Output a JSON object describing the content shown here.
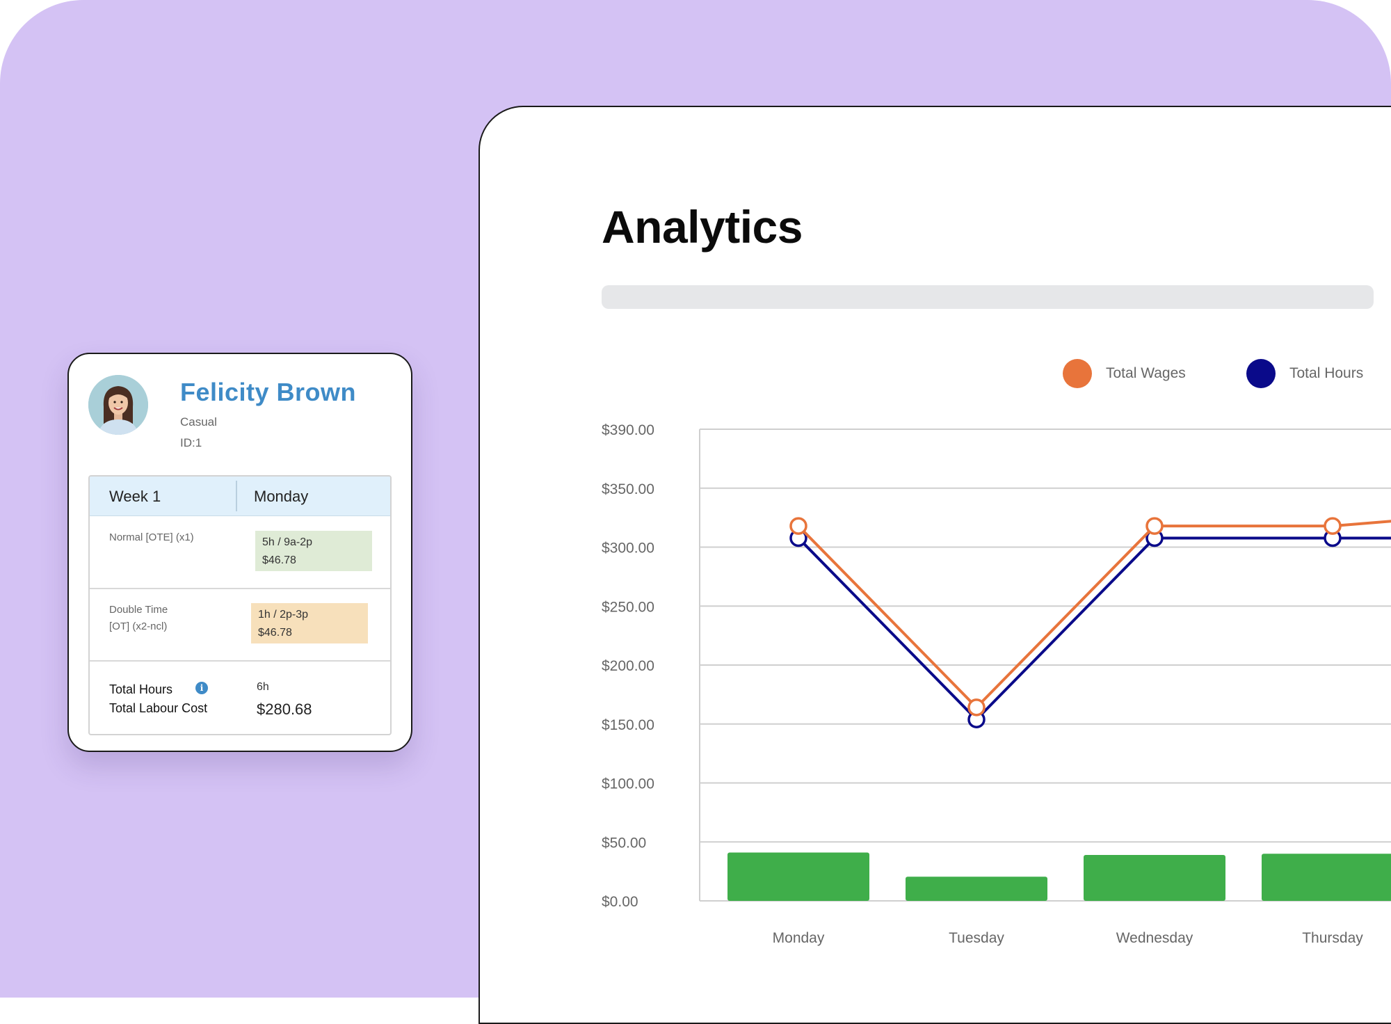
{
  "analytics": {
    "title": "Analytics",
    "legend": [
      {
        "label": "Total Wages",
        "color": "#e8743b"
      },
      {
        "label": "Total Hours",
        "color": "#0a0a8a"
      }
    ]
  },
  "chart_data": {
    "type": "line",
    "categories": [
      "Monday",
      "Tuesday",
      "Wednesday",
      "Thursday"
    ],
    "y_ticks": [
      "$390.00",
      "$350.00",
      "$300.00",
      "$250.00",
      "$200.00",
      "$150.00",
      "$100.00",
      "$50.00",
      "$0.00"
    ],
    "ylim": [
      0,
      390
    ],
    "series": [
      {
        "name": "Total Wages",
        "type": "line",
        "color": "#e8743b",
        "values": [
          310,
          160,
          310,
          310
        ],
        "continues_to": 322
      },
      {
        "name": "Total Hours",
        "type": "line",
        "color": "#0a0a8a",
        "values": [
          300,
          150,
          300,
          300
        ],
        "continues_to": 300
      },
      {
        "type": "bar",
        "color": "#3fae4a",
        "values": [
          40,
          20,
          38,
          39
        ]
      }
    ],
    "grid": true
  },
  "employee": {
    "name": "Felicity Brown",
    "type": "Casual",
    "id_text": "ID:1",
    "week_label": "Week 1",
    "day_label": "Monday",
    "rows": [
      {
        "label_lines": [
          "Normal [OTE] (x1)"
        ],
        "chip_line1": "5h / 9a-2p",
        "chip_line2": "$46.78",
        "chip_color": "#dfebd6"
      },
      {
        "label_lines": [
          "Double Time",
          "[OT] (x2-ncl)"
        ],
        "chip_line1": "1h / 2p-3p",
        "chip_line2": "$46.78",
        "chip_color": "#f7e0bb"
      }
    ],
    "total_hours_label": "Total Hours",
    "total_cost_label": "Total Labour Cost",
    "total_hours_value": "6h",
    "total_cost_value": "$280.68"
  }
}
